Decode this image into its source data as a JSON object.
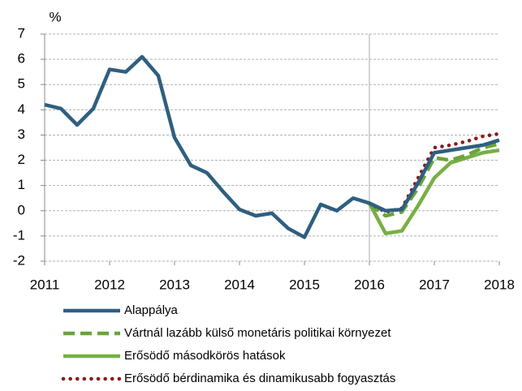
{
  "chart_data": {
    "type": "line",
    "y_label": "%",
    "x": [
      2011,
      2011.25,
      2011.5,
      2011.75,
      2012,
      2012.25,
      2012.5,
      2012.75,
      2013,
      2013.25,
      2013.5,
      2013.75,
      2014,
      2014.25,
      2014.5,
      2014.75,
      2015,
      2015.25,
      2015.5,
      2015.75,
      2016,
      2016.25,
      2016.5,
      2016.75,
      2017,
      2017.25,
      2017.5,
      2017.75,
      2018
    ],
    "series": [
      {
        "name": "Alappálya",
        "color": "#2f5f80",
        "style": "solid",
        "values": [
          4.2,
          4.05,
          3.4,
          4.05,
          5.6,
          5.5,
          6.1,
          5.35,
          2.9,
          1.8,
          1.5,
          0.75,
          0.05,
          -0.2,
          -0.1,
          -0.7,
          -1.05,
          0.25,
          0.0,
          0.5,
          0.3,
          0.0,
          0.05,
          1.1,
          2.3,
          2.4,
          2.5,
          2.6,
          2.8
        ]
      },
      {
        "name": "Vártnál lazább külső monetáris politikai környezet",
        "color": "#6aa43a",
        "style": "dashed",
        "values": [
          null,
          null,
          null,
          null,
          null,
          null,
          null,
          null,
          null,
          null,
          null,
          null,
          null,
          null,
          null,
          null,
          null,
          null,
          null,
          null,
          0.25,
          -0.2,
          -0.05,
          0.9,
          2.1,
          2.0,
          2.2,
          2.5,
          2.65
        ]
      },
      {
        "name": "Erősödő másodkörös hatások",
        "color": "#77b043",
        "style": "solid",
        "values": [
          null,
          null,
          null,
          null,
          null,
          null,
          null,
          null,
          null,
          null,
          null,
          null,
          null,
          null,
          null,
          null,
          null,
          null,
          null,
          null,
          0.3,
          -0.9,
          -0.8,
          0.2,
          1.3,
          1.9,
          2.1,
          2.3,
          2.4
        ]
      },
      {
        "name": "Erősödő bérdinamika és dinamikusabb fogyasztás",
        "color": "#8b1a1a",
        "style": "dotted",
        "values": [
          null,
          null,
          null,
          null,
          null,
          null,
          null,
          null,
          null,
          null,
          null,
          null,
          null,
          null,
          null,
          null,
          null,
          null,
          null,
          null,
          0.3,
          -0.05,
          0.1,
          1.3,
          2.5,
          2.6,
          2.75,
          2.95,
          3.05
        ]
      }
    ],
    "xlim": [
      2011,
      2018
    ],
    "xticks": [
      2011,
      2012,
      2013,
      2014,
      2015,
      2016,
      2017,
      2018
    ],
    "ylim": [
      -2,
      7
    ],
    "yticks": [
      -2,
      -1,
      0,
      1,
      2,
      3,
      4,
      5,
      6,
      7
    ],
    "vline": 2016,
    "grid": true
  }
}
